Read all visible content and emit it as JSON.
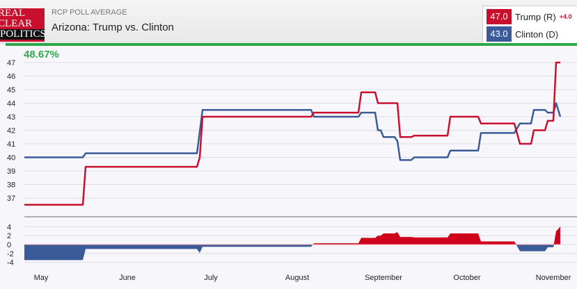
{
  "header": {
    "logo_lines": [
      "REAL",
      "CLEAR",
      "POLITICS"
    ],
    "subtitle": "RCP POLL AVERAGE",
    "title": "Arizona: Trump vs. Clinton"
  },
  "legend": [
    {
      "value": "47.0",
      "name": "Trump (R)",
      "change": "+4.0",
      "color": "#c8102e"
    },
    {
      "value": "43.0",
      "name": "Clinton (D)",
      "change": "",
      "color": "#3a5a98"
    }
  ],
  "progress_label": "48.67%",
  "progress": 48.67,
  "chart_data": {
    "type": "line",
    "title": "Arizona: Trump vs. Clinton",
    "ylim": [
      36,
      47.5
    ],
    "yticks": [
      37,
      38,
      39,
      40,
      41,
      42,
      43,
      44,
      45,
      46,
      47
    ],
    "spread_ylim": [
      -4,
      4
    ],
    "spread_yticks": [
      4,
      2,
      0,
      -2,
      -4
    ],
    "xlim": [
      0,
      198
    ],
    "x_ticks": [
      {
        "label": "May",
        "day": 6
      },
      {
        "label": "June",
        "day": 37
      },
      {
        "label": "July",
        "day": 67
      },
      {
        "label": "August",
        "day": 98
      },
      {
        "label": "September",
        "day": 129
      },
      {
        "label": "October",
        "day": 159
      },
      {
        "label": "November",
        "day": 190
      }
    ],
    "series": [
      {
        "name": "Trump (R)",
        "color": "#c8102e",
        "points": [
          [
            0,
            36.5
          ],
          [
            21,
            36.5
          ],
          [
            22,
            39.3
          ],
          [
            62,
            39.3
          ],
          [
            63,
            40
          ],
          [
            64,
            43
          ],
          [
            103,
            43
          ],
          [
            104,
            43.3
          ],
          [
            120,
            43.3
          ],
          [
            121,
            44.8
          ],
          [
            126,
            44.8
          ],
          [
            127,
            44
          ],
          [
            134,
            44
          ],
          [
            135,
            41.5
          ],
          [
            139,
            41.5
          ],
          [
            140,
            41.6
          ],
          [
            152,
            41.6
          ],
          [
            153,
            43
          ],
          [
            163,
            43
          ],
          [
            164,
            42.5
          ],
          [
            176,
            42.5
          ],
          [
            178,
            41
          ],
          [
            182,
            41
          ],
          [
            183,
            42
          ],
          [
            187,
            42
          ],
          [
            188,
            42.7
          ],
          [
            190,
            42.7
          ],
          [
            191,
            47
          ],
          [
            192.5,
            47
          ]
        ]
      },
      {
        "name": "Clinton (D)",
        "color": "#3a5a98",
        "points": [
          [
            0,
            40
          ],
          [
            21,
            40
          ],
          [
            22,
            40.3
          ],
          [
            62,
            40.3
          ],
          [
            64,
            43.5
          ],
          [
            103,
            43.5
          ],
          [
            104,
            43
          ],
          [
            120,
            43
          ],
          [
            121,
            43.3
          ],
          [
            126,
            43.3
          ],
          [
            127,
            42
          ],
          [
            128,
            42
          ],
          [
            129,
            41.5
          ],
          [
            133,
            41.5
          ],
          [
            134,
            41.2
          ],
          [
            135,
            39.8
          ],
          [
            139,
            39.8
          ],
          [
            140,
            40
          ],
          [
            152,
            40
          ],
          [
            153,
            40.5
          ],
          [
            163,
            40.5
          ],
          [
            164,
            41.8
          ],
          [
            176,
            41.8
          ],
          [
            178,
            42.5
          ],
          [
            182,
            42.5
          ],
          [
            183,
            43.5
          ],
          [
            187,
            43.5
          ],
          [
            188,
            43.3
          ],
          [
            190,
            43.3
          ],
          [
            191,
            44
          ],
          [
            192.5,
            43
          ]
        ]
      }
    ]
  }
}
